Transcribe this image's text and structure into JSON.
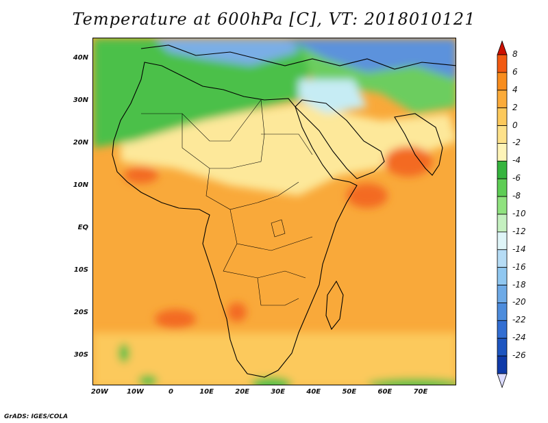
{
  "title": "Temperature at 600hPa [C], VT: 2018010121",
  "credit": "GrADS: IGES/COLA",
  "map": {
    "lon_range": [
      -22,
      80
    ],
    "lat_range": [
      -37,
      45
    ],
    "lon_ticks": [
      {
        "lon": -20,
        "label": "20W"
      },
      {
        "lon": -10,
        "label": "10W"
      },
      {
        "lon": 0,
        "label": "0"
      },
      {
        "lon": 10,
        "label": "10E"
      },
      {
        "lon": 20,
        "label": "20E"
      },
      {
        "lon": 30,
        "label": "30E"
      },
      {
        "lon": 40,
        "label": "40E"
      },
      {
        "lon": 50,
        "label": "50E"
      },
      {
        "lon": 60,
        "label": "60E"
      },
      {
        "lon": 70,
        "label": "70E"
      }
    ],
    "lat_ticks": [
      {
        "lat": 40,
        "label": "40N"
      },
      {
        "lat": 30,
        "label": "30N"
      },
      {
        "lat": 20,
        "label": "20N"
      },
      {
        "lat": 10,
        "label": "10N"
      },
      {
        "lat": 0,
        "label": "EQ"
      },
      {
        "lat": -10,
        "label": "10S"
      },
      {
        "lat": -20,
        "label": "20S"
      },
      {
        "lat": -30,
        "label": "30S"
      }
    ]
  },
  "colorbar": {
    "labels": [
      "8",
      "6",
      "4",
      "2",
      "0",
      "-2",
      "-4",
      "-6",
      "-8",
      "-10",
      "-12",
      "-14",
      "-16",
      "-18",
      "-20",
      "-22",
      "-24",
      "-26"
    ],
    "colors": [
      "#e31a0f",
      "#f25a12",
      "#f88d1e",
      "#fbab3a",
      "#fcc95c",
      "#fde18a",
      "#fef4b8",
      "#36b43e",
      "#5ecd55",
      "#90e27f",
      "#c5f0c0",
      "#dff5f8",
      "#b6dcf5",
      "#90c7f0",
      "#6eaae6",
      "#4d8cdc",
      "#326ed2",
      "#1d55c0",
      "#0f3aa8",
      "#0a1e7a"
    ],
    "top_arrow_color": "#cc1000",
    "bottom_arrow_color": "#dcdcff"
  },
  "field_regions": [
    {
      "name": "europe-cold",
      "color": "#7aaee6"
    },
    {
      "name": "arabia-cold",
      "color": "#c6ecf4"
    },
    {
      "name": "sahara-green",
      "color": "#4cc04a"
    },
    {
      "name": "sahel-yellow",
      "color": "#fde89a"
    },
    {
      "name": "tropical-orange",
      "color": "#f9a93a"
    },
    {
      "name": "warm-spot",
      "color": "#f36a24"
    }
  ]
}
